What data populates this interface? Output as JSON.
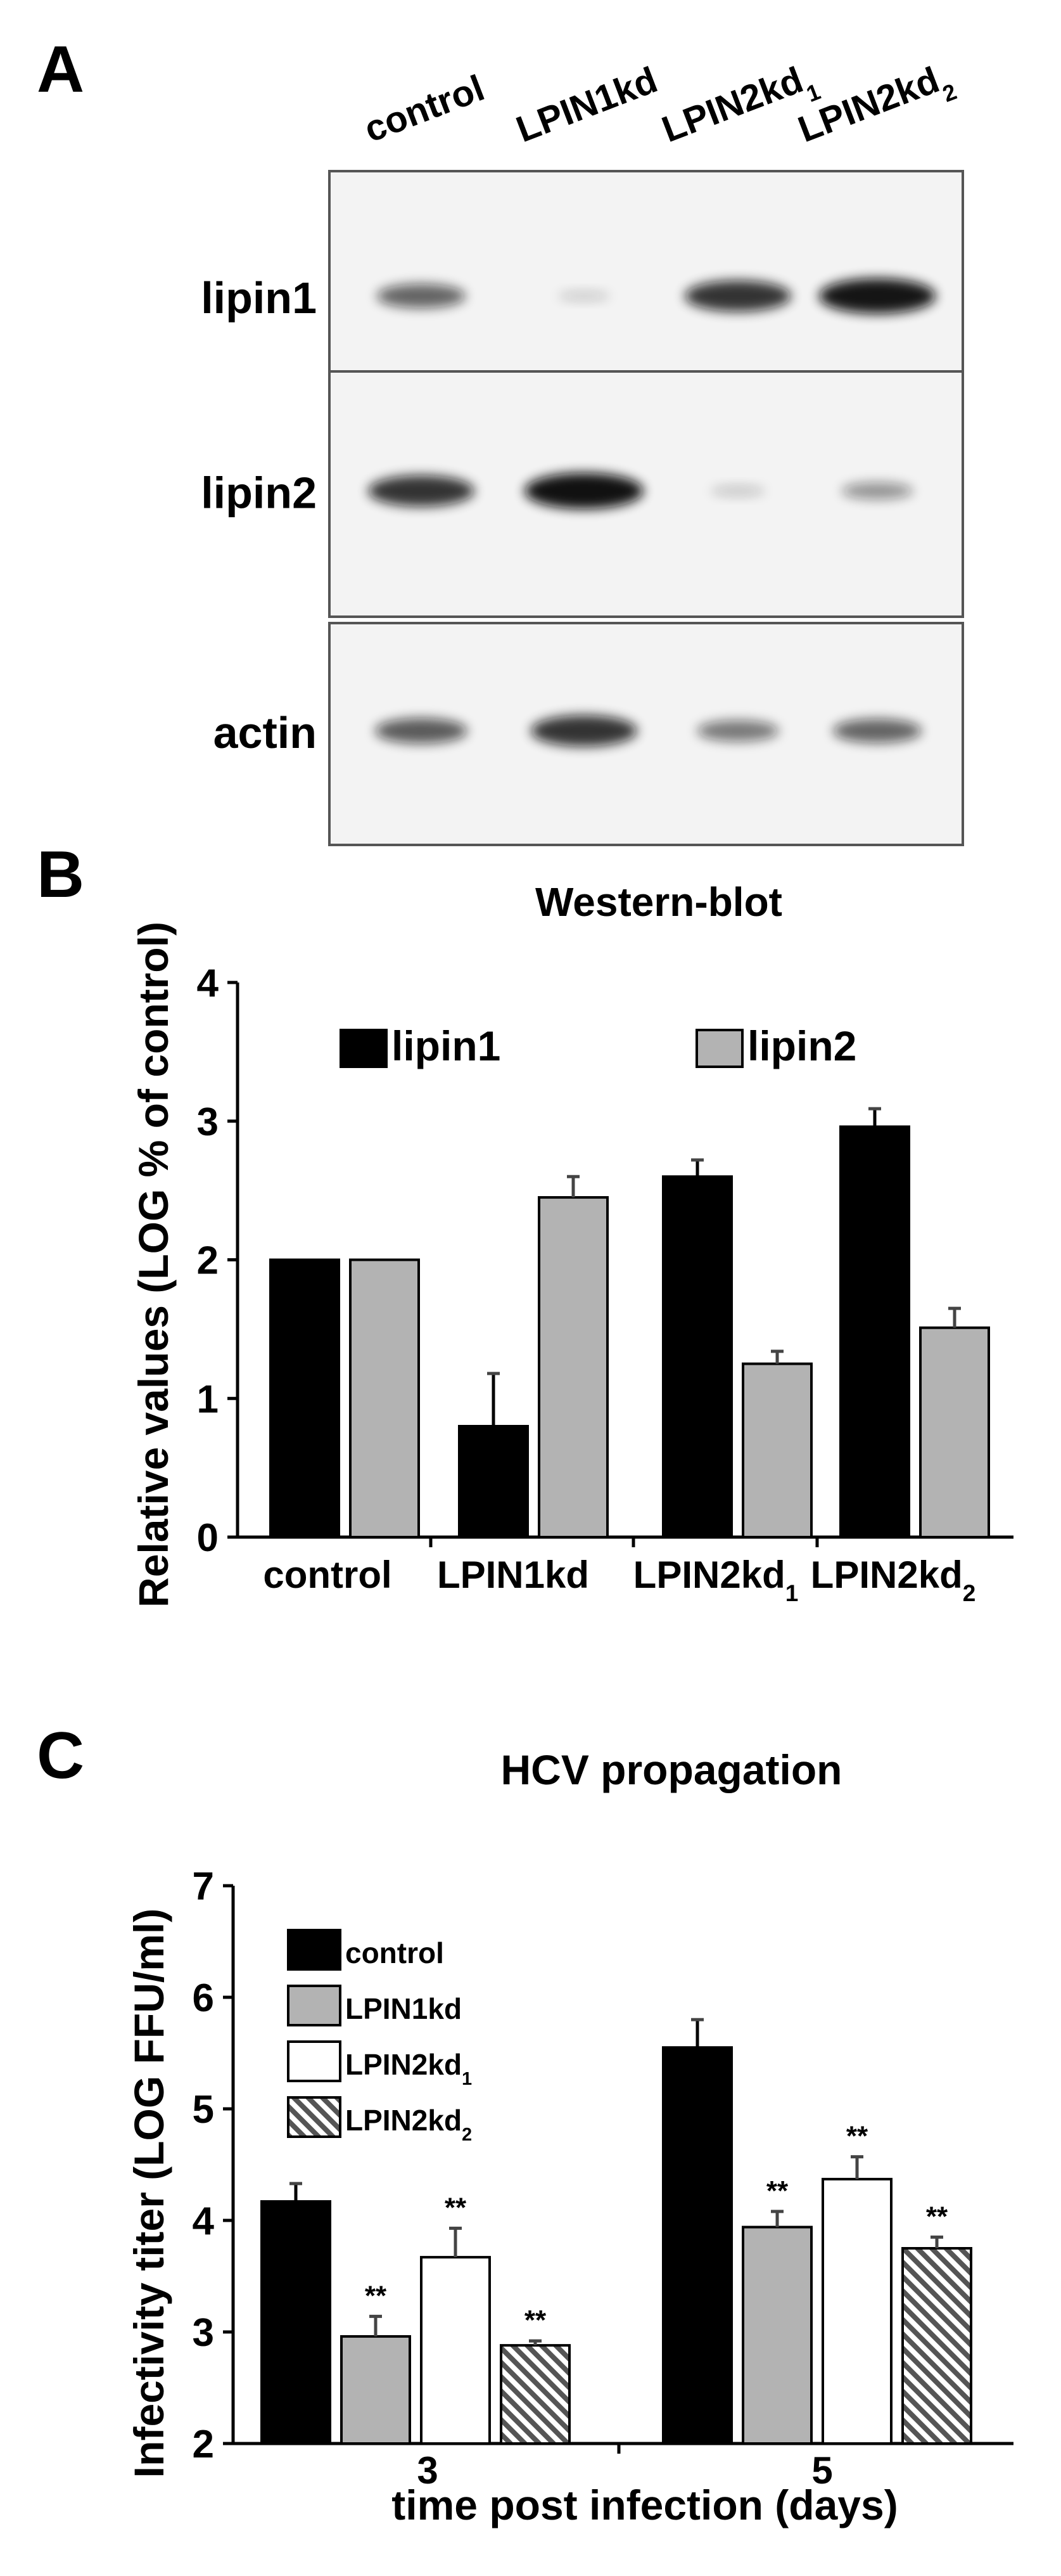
{
  "panels": {
    "a": {
      "letter": "A"
    },
    "b": {
      "letter": "B"
    },
    "c": {
      "letter": "C"
    }
  },
  "blot": {
    "lanes": [
      "control",
      "LPIN1kd",
      "LPIN2kd",
      "LPIN2kd"
    ],
    "lane_subscripts": [
      "",
      "",
      "1",
      "2"
    ],
    "rows": [
      {
        "label": "lipin1",
        "intensity": [
          0.55,
          0.03,
          0.8,
          0.95
        ]
      },
      {
        "label": "lipin2",
        "intensity": [
          0.8,
          0.98,
          0.06,
          0.3
        ]
      },
      {
        "label": "actin",
        "intensity": [
          0.6,
          0.8,
          0.45,
          0.55
        ]
      }
    ],
    "colors": {
      "band": "#0a0a0a",
      "membrane": "#f3f3f3",
      "frame": "#555555"
    }
  },
  "chart_data": [
    {
      "type": "bar",
      "title": "Western-blot",
      "xlabel": "",
      "ylabel": "Relative values (LOG % of control)",
      "ylim": [
        0,
        4
      ],
      "yticks": [
        0,
        1,
        2,
        3,
        4
      ],
      "grid": false,
      "legend_position": "top",
      "categories": [
        "control",
        "LPIN1kd",
        "LPIN2kd",
        "LPIN2kd"
      ],
      "category_subscripts": [
        "",
        "",
        "1",
        "2"
      ],
      "series": [
        {
          "name": "lipin1",
          "color": "#000000",
          "values": [
            2.0,
            0.8,
            2.6,
            2.96
          ],
          "errors": [
            0.0,
            0.38,
            0.12,
            0.13
          ]
        },
        {
          "name": "lipin2",
          "color": "#b3b3b3",
          "values": [
            2.0,
            2.45,
            1.25,
            1.51
          ],
          "errors": [
            0.0,
            0.15,
            0.09,
            0.14
          ]
        }
      ]
    },
    {
      "type": "bar",
      "title": "HCV propagation",
      "xlabel": "time post infection (days)",
      "ylabel": "Infectivity titer (LOG FFU/ml)",
      "ylim": [
        2,
        7
      ],
      "yticks": [
        2,
        3,
        4,
        5,
        6,
        7
      ],
      "grid": false,
      "legend_position": "top-left",
      "categories": [
        "3",
        "5"
      ],
      "series": [
        {
          "name": "control",
          "subscript": "",
          "color": "#000000",
          "pattern": "solid",
          "values": [
            4.17,
            5.55
          ],
          "errors": [
            0.16,
            0.25
          ],
          "annotations": [
            "",
            ""
          ]
        },
        {
          "name": "LPIN1kd",
          "subscript": "",
          "color": "#b3b3b3",
          "pattern": "solid",
          "values": [
            2.96,
            3.94
          ],
          "errors": [
            0.18,
            0.14
          ],
          "annotations": [
            "**",
            "**"
          ]
        },
        {
          "name": "LPIN2kd",
          "subscript": "1",
          "color": "#ffffff",
          "pattern": "solid",
          "values": [
            3.67,
            4.37
          ],
          "errors": [
            0.26,
            0.2
          ],
          "annotations": [
            "**",
            "**"
          ]
        },
        {
          "name": "LPIN2kd",
          "subscript": "2",
          "color": "#9a9a9a",
          "pattern": "hatched",
          "values": [
            2.88,
            3.75
          ],
          "errors": [
            0.04,
            0.1
          ],
          "annotations": [
            "**",
            "**"
          ]
        }
      ]
    }
  ]
}
